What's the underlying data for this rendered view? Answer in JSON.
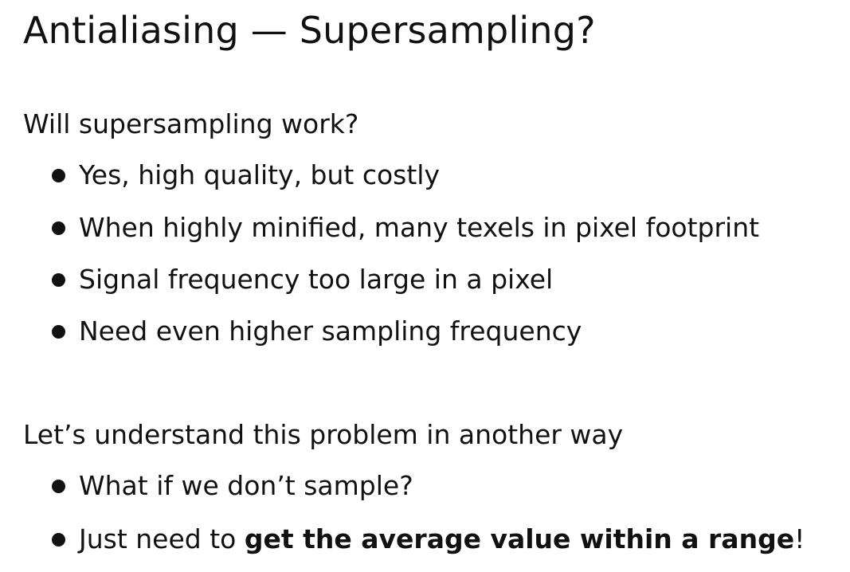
{
  "slide": {
    "title": "Antialiasing — Supersampling?",
    "section1": {
      "heading": "Will supersampling work?",
      "bullets": [
        "Yes, high quality, but costly",
        "When highly minified, many texels in pixel footprint",
        "Signal frequency too large in a pixel",
        "Need even higher sampling frequency"
      ]
    },
    "section2": {
      "heading": "Let’s understand this problem in another way",
      "bullet1": "What if we don’t sample?",
      "bullet2": {
        "prefix": "Just need to ",
        "bold": "get the average value within a range",
        "suffix": "!"
      }
    }
  }
}
